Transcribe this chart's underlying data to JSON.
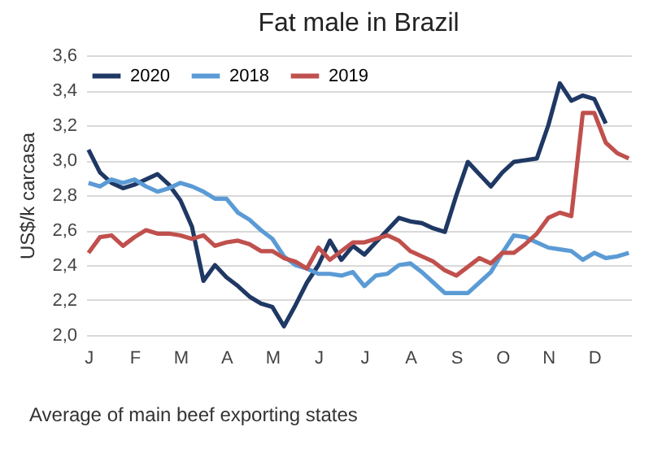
{
  "chart_data": {
    "type": "line",
    "title": "Fat male in Brazil",
    "ylabel": "US$/k carcasa",
    "annotations": [
      "Average of main beef exporting states"
    ],
    "categories": [
      "J",
      null,
      null,
      null,
      "F",
      null,
      null,
      null,
      "M",
      null,
      null,
      null,
      "A",
      null,
      null,
      null,
      "M",
      null,
      null,
      null,
      "J",
      null,
      null,
      null,
      "J",
      null,
      null,
      null,
      "A",
      null,
      null,
      null,
      "S",
      null,
      null,
      null,
      "O",
      null,
      null,
      null,
      "N",
      null,
      null,
      null,
      "D",
      null,
      null,
      null
    ],
    "ylim": [
      2.0,
      3.6
    ],
    "yticks": [
      {
        "value": 2.0,
        "label": "2,0"
      },
      {
        "value": 2.2,
        "label": "2,2"
      },
      {
        "value": 2.4,
        "label": "2,4"
      },
      {
        "value": 2.6,
        "label": "2,6"
      },
      {
        "value": 2.8,
        "label": "2,8"
      },
      {
        "value": 3.0,
        "label": "3,0"
      },
      {
        "value": 3.2,
        "label": "3,2"
      },
      {
        "value": 3.4,
        "label": "3,4"
      },
      {
        "value": 3.6,
        "label": "3,6"
      }
    ],
    "grid": "y",
    "legend": "top left",
    "line_style": "solid",
    "marker": "none",
    "series": [
      {
        "name": "2020",
        "color": "#1f3864",
        "values": [
          3.06,
          2.93,
          2.87,
          2.84,
          2.86,
          2.89,
          2.92,
          2.86,
          2.77,
          2.62,
          2.31,
          2.4,
          2.33,
          2.28,
          2.22,
          2.18,
          2.16,
          2.05,
          2.17,
          2.3,
          2.4,
          2.54,
          2.43,
          2.51,
          2.46,
          2.53,
          2.6,
          2.67,
          2.65,
          2.64,
          2.61,
          2.59,
          2.8,
          2.99,
          2.92,
          2.85,
          2.93,
          2.99,
          3.0,
          3.01,
          3.2,
          3.44,
          3.34,
          3.37,
          3.35,
          3.21,
          null,
          null
        ]
      },
      {
        "name": "2018",
        "color": "#5b9bd5",
        "values": [
          2.87,
          2.85,
          2.89,
          2.87,
          2.89,
          2.85,
          2.82,
          2.84,
          2.87,
          2.85,
          2.82,
          2.78,
          2.78,
          2.7,
          2.66,
          2.6,
          2.55,
          2.45,
          2.4,
          2.38,
          2.35,
          2.35,
          2.34,
          2.36,
          2.28,
          2.34,
          2.35,
          2.4,
          2.41,
          2.36,
          2.3,
          2.24,
          2.24,
          2.24,
          2.3,
          2.36,
          2.47,
          2.57,
          2.56,
          2.53,
          2.5,
          2.49,
          2.48,
          2.43,
          2.47,
          2.44,
          2.45,
          2.47
        ]
      },
      {
        "name": "2019",
        "color": "#c0504d",
        "values": [
          2.47,
          2.56,
          2.57,
          2.51,
          2.56,
          2.6,
          2.58,
          2.58,
          2.57,
          2.55,
          2.57,
          2.51,
          2.53,
          2.54,
          2.52,
          2.48,
          2.48,
          2.44,
          2.42,
          2.38,
          2.5,
          2.43,
          2.48,
          2.53,
          2.53,
          2.55,
          2.57,
          2.54,
          2.48,
          2.45,
          2.42,
          2.37,
          2.34,
          2.39,
          2.44,
          2.41,
          2.47,
          2.47,
          2.52,
          2.58,
          2.67,
          2.7,
          2.68,
          3.27,
          3.27,
          3.1,
          3.04,
          3.01
        ]
      }
    ]
  }
}
